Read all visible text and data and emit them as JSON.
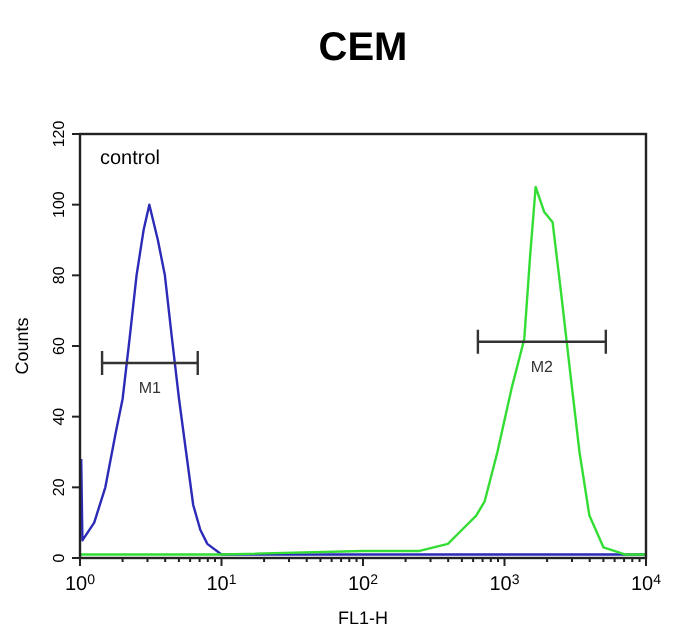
{
  "chart_data": {
    "type": "line",
    "title": "CEM",
    "xlabel": "FL1-H",
    "ylabel": "Counts",
    "log": "x",
    "xlim": [
      1,
      10000
    ],
    "ylim": [
      0,
      120
    ],
    "xticks": [
      {
        "value": 1,
        "label": "10$^{0}$"
      },
      {
        "value": 2,
        "label": null
      },
      {
        "value": 3,
        "label": null
      },
      {
        "value": 4,
        "label": null
      },
      {
        "value": 5,
        "label": null
      },
      {
        "value": 6,
        "label": null
      },
      {
        "value": 7,
        "label": null
      },
      {
        "value": 8,
        "label": null
      },
      {
        "value": 9,
        "label": null
      },
      {
        "value": 10,
        "label": "10$^{1}$"
      },
      {
        "value": 20,
        "label": null
      },
      {
        "value": 30,
        "label": null
      },
      {
        "value": 40,
        "label": null
      },
      {
        "value": 50,
        "label": null
      },
      {
        "value": 60,
        "label": null
      },
      {
        "value": 70,
        "label": null
      },
      {
        "value": 80,
        "label": null
      },
      {
        "value": 90,
        "label": null
      },
      {
        "value": 100,
        "label": "10$^{2}$"
      },
      {
        "value": 200,
        "label": null
      },
      {
        "value": 300,
        "label": null
      },
      {
        "value": 400,
        "label": null
      },
      {
        "value": 500,
        "label": null
      },
      {
        "value": 600,
        "label": null
      },
      {
        "value": 700,
        "label": null
      },
      {
        "value": 800,
        "label": null
      },
      {
        "value": 900,
        "label": null
      },
      {
        "value": 1000,
        "label": "10$^{3}$"
      },
      {
        "value": 2000,
        "label": null
      },
      {
        "value": 3000,
        "label": null
      },
      {
        "value": 4000,
        "label": null
      },
      {
        "value": 5000,
        "label": null
      },
      {
        "value": 6000,
        "label": null
      },
      {
        "value": 7000,
        "label": null
      },
      {
        "value": 8000,
        "label": null
      },
      {
        "value": 9000,
        "label": null
      },
      {
        "value": 10000,
        "label": "10$^{4}$"
      }
    ],
    "yticks": [
      0,
      20,
      40,
      60,
      80,
      100,
      120
    ],
    "series": [
      {
        "color": "#2b2bb8",
        "x": [
          1.02,
          1.04,
          1.26,
          1.51,
          1.78,
          2,
          2.24,
          2.51,
          2.82,
          3.09,
          3.55,
          3.98,
          4.47,
          5.01,
          5.62,
          6.31,
          7.08,
          7.94,
          10,
          31.6,
          316,
          10000
        ],
        "values": [
          28,
          5,
          10,
          20,
          35,
          45,
          62,
          80,
          93,
          100,
          90,
          80,
          62,
          45,
          30,
          15,
          8,
          4,
          1,
          1,
          1,
          1
        ]
      },
      {
        "color": "#33dd33",
        "x": [
          1,
          10,
          100,
          251,
          398,
          501,
          631,
          724,
          891,
          1122,
          1380,
          1514,
          1660,
          1905,
          2188,
          2512,
          2884,
          3388,
          3981,
          5012,
          7079,
          10000
        ],
        "values": [
          1,
          1,
          2,
          2,
          4,
          8,
          12,
          16,
          30,
          48,
          62,
          85,
          105,
          98,
          95,
          75,
          54,
          30,
          12,
          3,
          1,
          1
        ]
      }
    ],
    "annotations": [
      "control",
      "M1",
      "M2"
    ]
  }
}
